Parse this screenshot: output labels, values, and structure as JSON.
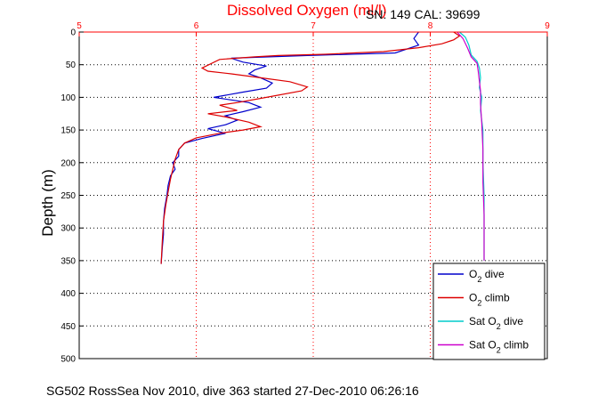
{
  "chart_data": {
    "type": "line",
    "title": "Dissolved Oxygen (ml/l)",
    "sn_cal_text": "SN: 149  CAL: 39699",
    "ylabel": "Depth (m)",
    "footer": "SG502 RossSea Nov 2010, dive 363 started 27-Dec-2010 06:26:16",
    "xlim": [
      5,
      9
    ],
    "ylim": [
      0,
      500
    ],
    "y_reversed": true,
    "x_axis_position": "top",
    "x_ticks": [
      5,
      6,
      7,
      8,
      9
    ],
    "y_ticks": [
      0,
      50,
      100,
      150,
      200,
      250,
      300,
      350,
      400,
      450,
      500
    ],
    "grid": true,
    "legend_position": "bottom-right",
    "series": [
      {
        "name": "O2 dive",
        "color": "#0000cc",
        "points": [
          [
            7.9,
            0
          ],
          [
            7.88,
            5
          ],
          [
            7.86,
            10
          ],
          [
            7.9,
            20
          ],
          [
            7.7,
            32
          ],
          [
            6.95,
            36
          ],
          [
            6.3,
            40
          ],
          [
            6.4,
            46
          ],
          [
            6.6,
            52
          ],
          [
            6.5,
            58
          ],
          [
            6.45,
            64
          ],
          [
            6.55,
            70
          ],
          [
            6.65,
            78
          ],
          [
            6.6,
            86
          ],
          [
            6.4,
            92
          ],
          [
            6.15,
            100
          ],
          [
            6.3,
            104
          ],
          [
            6.45,
            108
          ],
          [
            6.55,
            115
          ],
          [
            6.4,
            122
          ],
          [
            6.25,
            128
          ],
          [
            6.35,
            135
          ],
          [
            6.25,
            142
          ],
          [
            6.1,
            148
          ],
          [
            6.25,
            155
          ],
          [
            6.05,
            163
          ],
          [
            5.9,
            170
          ],
          [
            5.85,
            180
          ],
          [
            5.85,
            190
          ],
          [
            5.8,
            200
          ],
          [
            5.82,
            210
          ],
          [
            5.78,
            220
          ],
          [
            5.76,
            235
          ],
          [
            5.75,
            250
          ],
          [
            5.73,
            270
          ],
          [
            5.72,
            290
          ],
          [
            5.72,
            310
          ],
          [
            5.71,
            330
          ],
          [
            5.7,
            355
          ]
        ]
      },
      {
        "name": "O2 climb",
        "color": "#dd0000",
        "points": [
          [
            8.2,
            0
          ],
          [
            8.25,
            6
          ],
          [
            8.2,
            12
          ],
          [
            8.1,
            18
          ],
          [
            7.9,
            24
          ],
          [
            7.6,
            30
          ],
          [
            7.1,
            34
          ],
          [
            6.7,
            36
          ],
          [
            6.5,
            38
          ],
          [
            6.2,
            42
          ],
          [
            6.05,
            55
          ],
          [
            6.1,
            60
          ],
          [
            6.3,
            64
          ],
          [
            6.55,
            70
          ],
          [
            6.8,
            76
          ],
          [
            6.95,
            84
          ],
          [
            6.9,
            90
          ],
          [
            6.6,
            100
          ],
          [
            6.35,
            108
          ],
          [
            6.2,
            112
          ],
          [
            6.35,
            120
          ],
          [
            6.1,
            125
          ],
          [
            6.25,
            130
          ],
          [
            6.45,
            138
          ],
          [
            6.55,
            145
          ],
          [
            6.4,
            150
          ],
          [
            6.2,
            155
          ],
          [
            6.0,
            162
          ],
          [
            5.9,
            170
          ],
          [
            5.85,
            180
          ],
          [
            5.82,
            195
          ],
          [
            5.8,
            210
          ],
          [
            5.78,
            225
          ],
          [
            5.76,
            245
          ],
          [
            5.74,
            265
          ],
          [
            5.72,
            290
          ],
          [
            5.71,
            320
          ],
          [
            5.7,
            355
          ]
        ]
      },
      {
        "name": "Sat O2 dive",
        "color": "#00cccc",
        "points": [
          [
            8.25,
            0
          ],
          [
            8.3,
            8
          ],
          [
            8.33,
            20
          ],
          [
            8.35,
            35
          ],
          [
            8.4,
            45
          ],
          [
            8.42,
            55
          ],
          [
            8.43,
            70
          ],
          [
            8.42,
            85
          ],
          [
            8.44,
            100
          ],
          [
            8.43,
            120
          ],
          [
            8.45,
            150
          ],
          [
            8.45,
            200
          ],
          [
            8.46,
            250
          ],
          [
            8.46,
            300
          ],
          [
            8.46,
            350
          ]
        ]
      },
      {
        "name": "Sat O2 climb",
        "color": "#cc00cc",
        "points": [
          [
            8.23,
            0
          ],
          [
            8.28,
            10
          ],
          [
            8.32,
            25
          ],
          [
            8.35,
            38
          ],
          [
            8.4,
            48
          ],
          [
            8.41,
            60
          ],
          [
            8.42,
            75
          ],
          [
            8.43,
            90
          ],
          [
            8.43,
            110
          ],
          [
            8.44,
            140
          ],
          [
            8.45,
            180
          ],
          [
            8.45,
            230
          ],
          [
            8.46,
            280
          ],
          [
            8.46,
            320
          ],
          [
            8.46,
            350
          ]
        ]
      }
    ]
  }
}
